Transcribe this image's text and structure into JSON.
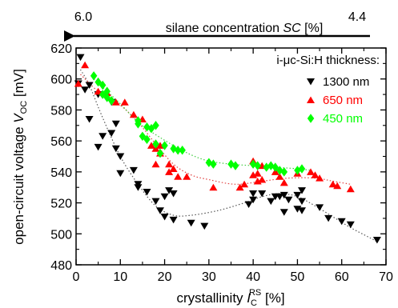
{
  "top_axis": {
    "left_value": "6.0",
    "right_value": "4.4",
    "label_prefix": "silane concentration ",
    "label_italic": "SC",
    "label_suffix": " [%]"
  },
  "chart_data": {
    "type": "scatter",
    "xlabel_prefix": "crystallinity ",
    "xlabel_symbol": "I",
    "xlabel_sub": "C",
    "xlabel_sup": "RS",
    "xlabel_unit": " [%]",
    "ylabel_prefix": "open-circuit voltage ",
    "ylabel_symbol": "V",
    "ylabel_sub": "OC",
    "ylabel_unit": " [mV]",
    "xlim": [
      0,
      70
    ],
    "ylim": [
      480,
      620
    ],
    "xticks": [
      0,
      10,
      20,
      30,
      40,
      50,
      60,
      70
    ],
    "yticks": [
      480,
      500,
      520,
      540,
      560,
      580,
      600,
      620
    ],
    "grid": false,
    "legend_title": "i-μc-Si:H thickness:",
    "legend_position": "top-right",
    "series": [
      {
        "name": "1300 nm",
        "marker": "triangle-down",
        "color": "#000000",
        "points": [
          [
            1,
            614
          ],
          [
            0.5,
            597
          ],
          [
            3,
            596
          ],
          [
            2,
            593
          ],
          [
            5,
            590
          ],
          [
            8,
            585
          ],
          [
            3,
            574
          ],
          [
            9,
            571
          ],
          [
            8,
            565
          ],
          [
            6,
            563
          ],
          [
            5,
            556
          ],
          [
            9,
            555
          ],
          [
            10,
            550
          ],
          [
            13,
            541
          ],
          [
            10,
            539
          ],
          [
            14,
            532
          ],
          [
            14,
            530
          ],
          [
            16,
            527
          ],
          [
            18,
            521
          ],
          [
            19,
            515
          ],
          [
            20,
            511
          ],
          [
            20,
            524
          ],
          [
            22,
            509
          ],
          [
            22,
            526
          ],
          [
            21,
            528
          ],
          [
            26,
            507
          ],
          [
            29,
            505
          ],
          [
            39,
            519
          ],
          [
            40,
            522
          ],
          [
            40,
            526
          ],
          [
            42,
            526
          ],
          [
            44,
            521
          ],
          [
            45,
            524
          ],
          [
            46,
            524
          ],
          [
            47,
            525
          ],
          [
            47,
            514
          ],
          [
            48,
            522
          ],
          [
            50,
            516
          ],
          [
            50,
            525
          ],
          [
            51,
            521
          ],
          [
            51,
            515
          ],
          [
            51,
            528
          ],
          [
            55,
            517
          ],
          [
            57,
            510
          ],
          [
            60,
            508
          ],
          [
            62,
            506
          ],
          [
            68,
            496
          ]
        ]
      },
      {
        "name": "650 nm",
        "marker": "triangle-up",
        "color": "#ff0000",
        "points": [
          [
            2,
            609
          ],
          [
            0.5,
            597
          ],
          [
            5,
            592
          ],
          [
            7,
            591
          ],
          [
            9,
            585
          ],
          [
            11,
            585
          ],
          [
            13,
            577
          ],
          [
            15,
            574
          ],
          [
            17,
            557
          ],
          [
            18,
            555
          ],
          [
            19,
            552
          ],
          [
            19,
            557
          ],
          [
            21,
            545
          ],
          [
            22,
            542
          ],
          [
            23,
            537
          ],
          [
            25,
            537
          ],
          [
            18,
            545
          ],
          [
            21,
            540
          ],
          [
            31,
            530
          ],
          [
            37,
            530
          ],
          [
            38,
            532
          ],
          [
            40,
            547
          ],
          [
            40,
            538
          ],
          [
            41,
            539
          ],
          [
            41,
            534
          ],
          [
            42,
            544
          ],
          [
            42,
            535
          ],
          [
            45,
            540
          ],
          [
            46,
            537
          ],
          [
            47,
            533
          ],
          [
            50,
            539
          ],
          [
            53,
            540
          ],
          [
            54,
            538
          ],
          [
            55,
            536
          ],
          [
            58,
            532
          ],
          [
            59,
            531
          ],
          [
            62,
            529
          ]
        ]
      },
      {
        "name": "450 nm",
        "marker": "diamond",
        "color": "#00ff00",
        "points": [
          [
            4,
            602
          ],
          [
            5,
            598
          ],
          [
            6,
            596
          ],
          [
            6,
            590
          ],
          [
            7,
            592
          ],
          [
            7,
            588
          ],
          [
            8,
            586
          ],
          [
            14,
            573
          ],
          [
            14,
            571
          ],
          [
            16,
            569
          ],
          [
            17,
            568
          ],
          [
            18,
            570
          ],
          [
            15,
            563
          ],
          [
            16,
            561
          ],
          [
            18,
            558
          ],
          [
            20,
            557
          ],
          [
            19,
            552
          ],
          [
            22,
            555
          ],
          [
            23,
            554
          ],
          [
            24,
            554
          ],
          [
            30,
            546
          ],
          [
            31,
            545
          ],
          [
            35,
            545
          ],
          [
            36,
            544
          ],
          [
            40,
            545
          ],
          [
            41,
            544
          ],
          [
            43,
            543
          ],
          [
            44,
            544
          ],
          [
            45,
            543
          ],
          [
            46,
            541
          ],
          [
            47,
            540
          ],
          [
            50,
            541
          ],
          [
            51,
            542
          ]
        ]
      }
    ],
    "trend_lines": [
      {
        "series": "1300 nm",
        "color": "#555555",
        "points": [
          [
            1,
            606
          ],
          [
            3,
            596
          ],
          [
            6,
            575
          ],
          [
            10,
            550
          ],
          [
            14,
            532
          ],
          [
            18,
            518
          ],
          [
            22,
            512
          ],
          [
            26,
            512
          ],
          [
            32,
            515
          ],
          [
            38,
            520
          ],
          [
            42,
            524
          ],
          [
            46,
            526
          ],
          [
            50,
            524
          ],
          [
            54,
            518
          ],
          [
            58,
            511
          ],
          [
            62,
            504
          ],
          [
            66,
            498
          ],
          [
            68,
            495
          ]
        ]
      },
      {
        "series": "650 nm",
        "color": "#e04040",
        "points": [
          [
            1,
            603
          ],
          [
            5,
            592
          ],
          [
            10,
            583
          ],
          [
            14,
            572
          ],
          [
            18,
            558
          ],
          [
            22,
            545
          ],
          [
            26,
            538
          ],
          [
            30,
            535
          ],
          [
            36,
            532
          ],
          [
            42,
            534
          ],
          [
            48,
            536
          ],
          [
            54,
            536
          ],
          [
            58,
            534
          ],
          [
            62,
            532
          ]
        ]
      },
      {
        "series": "450 nm",
        "color": "#40cc40",
        "points": [
          [
            4,
            600
          ],
          [
            7,
            592
          ],
          [
            10,
            584
          ],
          [
            14,
            572
          ],
          [
            18,
            564
          ],
          [
            22,
            557
          ],
          [
            26,
            551
          ],
          [
            30,
            547
          ],
          [
            35,
            545
          ],
          [
            40,
            544
          ],
          [
            45,
            543
          ],
          [
            50,
            542
          ],
          [
            53,
            541
          ]
        ]
      }
    ]
  }
}
